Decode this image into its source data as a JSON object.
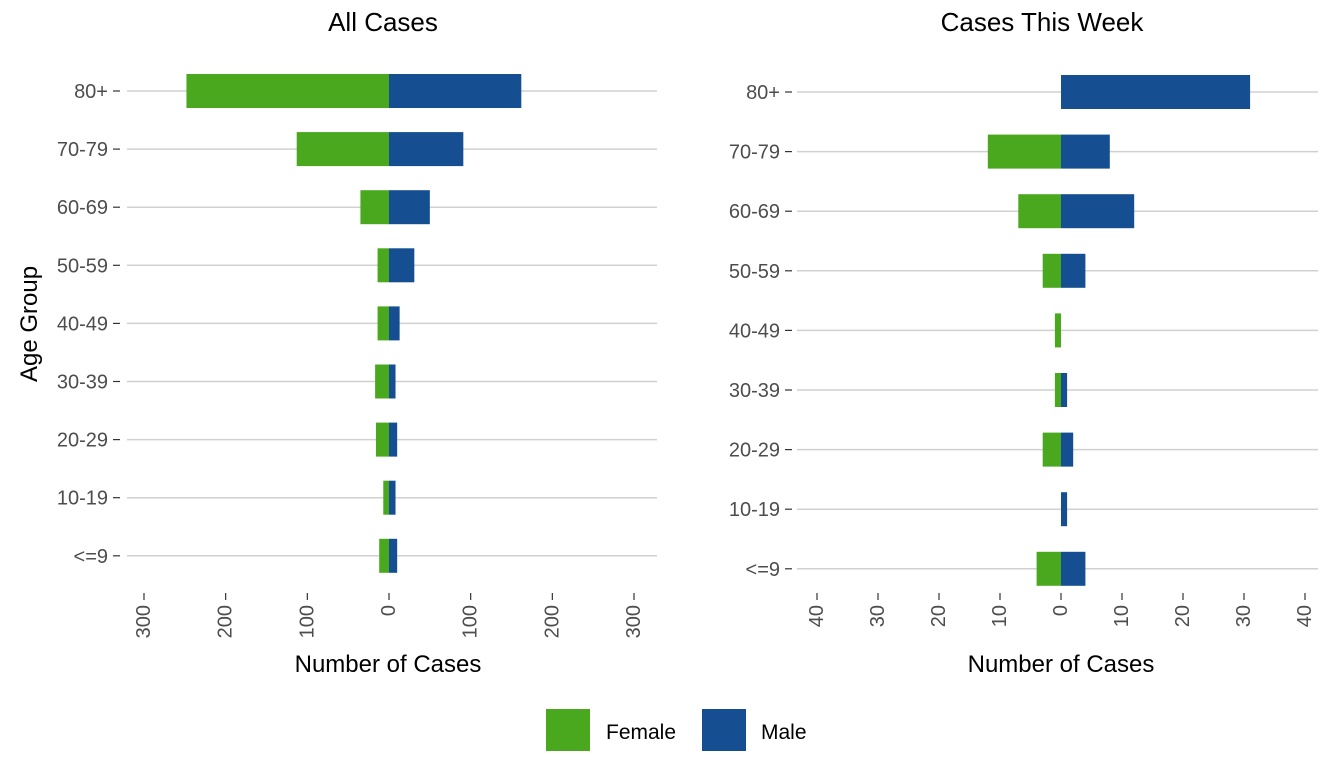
{
  "colors": {
    "female": "#4aa81f",
    "male": "#154e91"
  },
  "chart_data": [
    {
      "type": "bar",
      "orientation": "horizontal-pyramid",
      "title": "All Cases",
      "xlabel": "Number of Cases",
      "ylabel": "Age Group",
      "xlim": [
        -300,
        300
      ],
      "xticks": [
        "300",
        "200",
        "100",
        "0",
        "100",
        "200",
        "300"
      ],
      "xtick_values": [
        -300,
        -200,
        -100,
        0,
        100,
        200,
        300
      ],
      "categories": [
        "80+",
        "70-79",
        "60-69",
        "50-59",
        "40-49",
        "30-39",
        "20-29",
        "10-19",
        "<=9"
      ],
      "series": [
        {
          "name": "Female",
          "values": [
            -248,
            -113,
            -35,
            -14,
            -14,
            -17,
            -16,
            -7,
            -12
          ]
        },
        {
          "name": "Male",
          "values": [
            162,
            91,
            50,
            31,
            13,
            8,
            10,
            8,
            10
          ]
        }
      ]
    },
    {
      "type": "bar",
      "orientation": "horizontal-pyramid",
      "title": "Cases This Week",
      "xlabel": "Number of Cases",
      "ylabel": "",
      "xlim": [
        -40,
        40
      ],
      "xticks": [
        "40",
        "30",
        "20",
        "10",
        "0",
        "10",
        "20",
        "30",
        "40"
      ],
      "xtick_values": [
        -40,
        -30,
        -20,
        -10,
        0,
        10,
        20,
        30,
        40
      ],
      "categories": [
        "80+",
        "70-79",
        "60-69",
        "50-59",
        "40-49",
        "30-39",
        "20-29",
        "10-19",
        "<=9"
      ],
      "series": [
        {
          "name": "Female",
          "values": [
            0,
            -12,
            -7,
            -3,
            -1,
            -1,
            -3,
            0,
            -4
          ]
        },
        {
          "name": "Male",
          "values": [
            31,
            8,
            12,
            4,
            0,
            1,
            2,
            1,
            4
          ]
        }
      ]
    }
  ],
  "legend": {
    "position": "bottom",
    "items": [
      {
        "label": "Female",
        "color": "#4aa81f"
      },
      {
        "label": "Male",
        "color": "#154e91"
      }
    ]
  }
}
